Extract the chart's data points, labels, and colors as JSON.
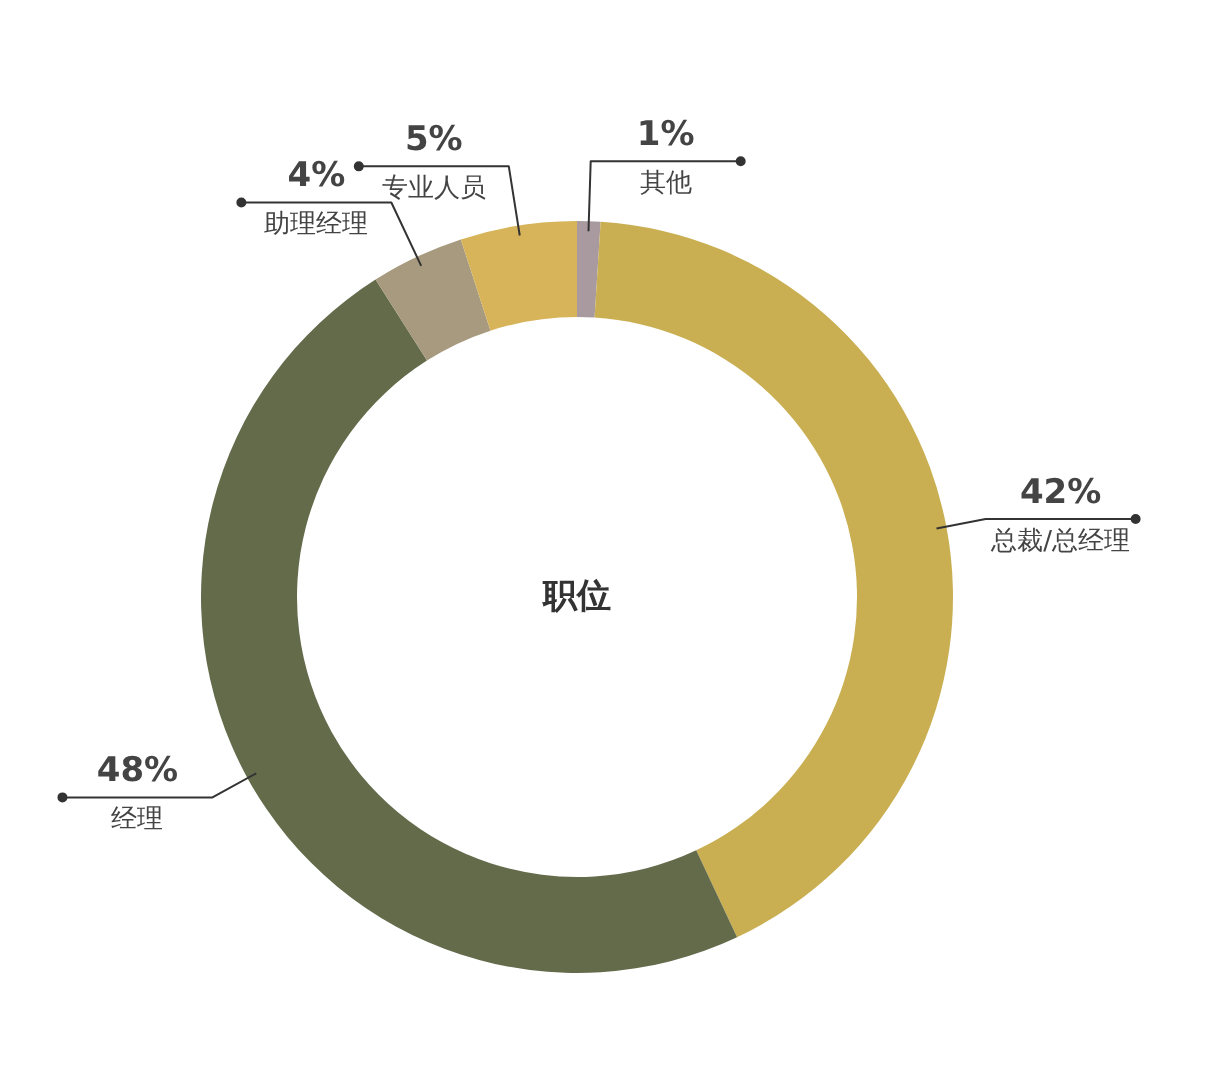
{
  "chart_data": {
    "type": "donut",
    "title": "职位",
    "categories": [
      "其他",
      "总裁/总经理",
      "经理",
      "助理经理",
      "专业人员"
    ],
    "values": [
      1,
      42,
      48,
      4,
      5
    ],
    "value_labels": [
      "1%",
      "42%",
      "48%",
      "4%",
      "5%"
    ],
    "colors": [
      "#a89a9e",
      "#c9af52",
      "#636b4b",
      "#a89a7e",
      "#d7b45a"
    ],
    "legend": false
  }
}
